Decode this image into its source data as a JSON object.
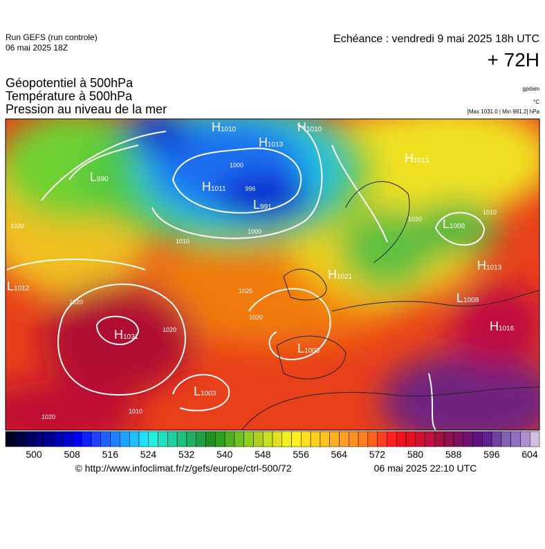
{
  "header": {
    "run": "Run GEFS (run controle)",
    "run_date": "06 mai 2025 18Z",
    "valid": "Echéance : vendredi 9 mai 2025 18h UTC",
    "lead": "+ 72H"
  },
  "fields": [
    "Géopotentiel à 500hPa",
    "Température à 500hPa",
    "Pression au niveau de la mer"
  ],
  "units": {
    "geopotential": "gpdam",
    "temperature": "°C",
    "pressure": "[Max 1031.0 | Min 981.2] hPa"
  },
  "centers": [
    {
      "letter": "H",
      "value": "1010"
    },
    {
      "letter": "H",
      "value": "1013"
    },
    {
      "letter": "L",
      "value": "990"
    },
    {
      "letter": "H",
      "value": "1011"
    },
    {
      "letter": "L",
      "value": "991"
    },
    {
      "letter": "H",
      "value": "1010"
    },
    {
      "letter": "H",
      "value": "1013"
    },
    {
      "letter": "L",
      "value": "1008"
    },
    {
      "letter": "H",
      "value": "1013"
    },
    {
      "letter": "H",
      "value": "1021"
    },
    {
      "letter": "L",
      "value": "1008"
    },
    {
      "letter": "H",
      "value": "1016"
    },
    {
      "letter": "H",
      "value": "1031"
    },
    {
      "letter": "L",
      "value": "1003"
    },
    {
      "letter": "L",
      "value": "1003"
    },
    {
      "letter": "L",
      "value": "1012"
    }
  ],
  "isobar_labels": [
    "1000",
    "996",
    "1000",
    "1010",
    "1020",
    "1020",
    "1020",
    "1020",
    "1010",
    "1020",
    "1010",
    "1020",
    "1020"
  ],
  "colorbar": {
    "ticks": [
      "500",
      "508",
      "516",
      "524",
      "532",
      "540",
      "548",
      "556",
      "564",
      "572",
      "580",
      "588",
      "596",
      "604"
    ]
  },
  "footer": {
    "source": "© http://www.infoclimat.fr/z/gefs/europe/ctrl-500/72",
    "generated": "06 mai 2025 22:10 UTC"
  }
}
